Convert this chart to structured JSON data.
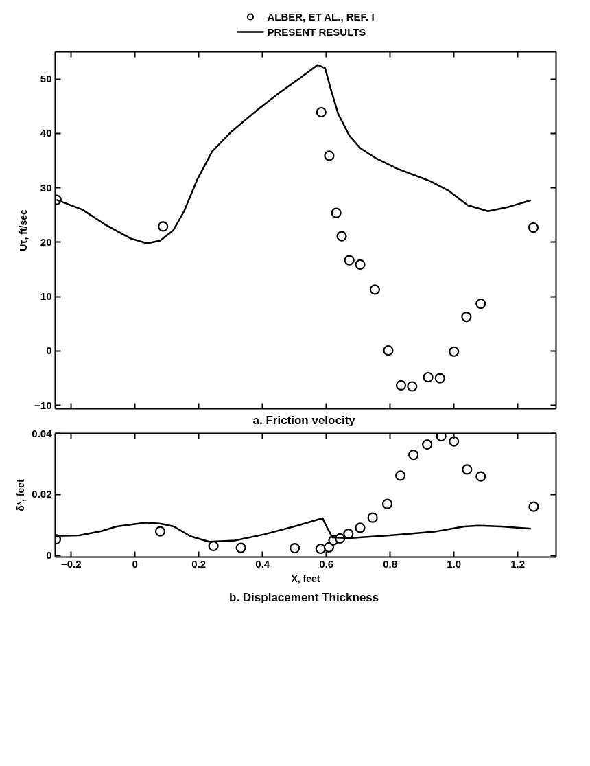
{
  "chart_data": [
    {
      "type": "scatter",
      "title": "a.  Friction velocity",
      "ylabel": "Uτ, ft/sec",
      "legend": "top",
      "tick_labels": "y",
      "grid": false,
      "xlim": [
        -0.25,
        1.32
      ],
      "ylim": [
        -10.6,
        55
      ],
      "xticks": [
        -0.2,
        0,
        0.2,
        0.4,
        0.6,
        0.8,
        1.0,
        1.2
      ],
      "yticks": [
        -10,
        0,
        10,
        20,
        30,
        40,
        50
      ],
      "series": [
        {
          "name": "ALBER, ET AL., REF. I",
          "marker": "circle",
          "color": "#000000",
          "x": [
            -0.246,
            0.088,
            0.584,
            0.609,
            0.631,
            0.648,
            0.672,
            0.706,
            0.752,
            0.794,
            0.834,
            0.869,
            0.919,
            0.956,
            1.0,
            1.039,
            1.084,
            1.249
          ],
          "values": [
            27.8,
            22.9,
            43.9,
            35.9,
            25.4,
            21.1,
            16.7,
            15.9,
            11.3,
            0.1,
            -6.3,
            -6.5,
            -4.8,
            -5.0,
            -0.1,
            6.3,
            8.7,
            22.7
          ]
        },
        {
          "name": "PRESENT RESULTS",
          "type": "line",
          "line_style": "solid",
          "color": "#000000",
          "x": [
            -0.246,
            -0.165,
            -0.095,
            -0.014,
            0.038,
            0.079,
            0.12,
            0.154,
            0.195,
            0.242,
            0.3,
            0.381,
            0.451,
            0.52,
            0.573,
            0.596,
            0.613,
            0.637,
            0.672,
            0.706,
            0.753,
            0.823,
            0.927,
            0.985,
            1.043,
            1.107,
            1.171,
            1.241
          ],
          "values": [
            27.8,
            26.0,
            23.3,
            20.7,
            19.8,
            20.3,
            22.2,
            25.7,
            31.5,
            36.7,
            40.2,
            44.2,
            47.4,
            50.3,
            52.6,
            52.0,
            48.3,
            43.6,
            39.6,
            37.3,
            35.5,
            33.5,
            31.2,
            29.4,
            26.8,
            25.7,
            26.5,
            27.7
          ]
        }
      ]
    },
    {
      "type": "scatter",
      "title": "b.  Displacement Thickness",
      "xlabel": "X, feet",
      "ylabel": "δ*, feet",
      "grid": false,
      "xlim": [
        -0.25,
        1.32
      ],
      "ylim": [
        -0.0005,
        0.04
      ],
      "xticks": [
        -0.2,
        0,
        0.2,
        0.4,
        0.6,
        0.8,
        {
          "value": 1.0,
          "label": "1.0"
        },
        1.2
      ],
      "yticks": [
        0,
        0.02,
        0.04
      ],
      "series": [
        {
          "marker": "circle",
          "color": "#000000",
          "x": [
            -0.248,
            0.079,
            0.246,
            0.332,
            0.501,
            0.582,
            0.608,
            0.622,
            0.643,
            0.669,
            0.706,
            0.745,
            0.791,
            0.832,
            0.873,
            0.916,
            0.96,
            1.0,
            1.041,
            1.084,
            1.25
          ],
          "values": [
            0.0053,
            0.0079,
            0.0031,
            0.0025,
            0.0024,
            0.0022,
            0.0027,
            0.005,
            0.0056,
            0.0071,
            0.0091,
            0.0124,
            0.0169,
            0.0262,
            0.033,
            0.0364,
            0.0391,
            0.0374,
            0.0282,
            0.0259,
            0.016
          ]
        },
        {
          "type": "line",
          "line_style": "solid",
          "color": "#000000",
          "x": [
            -0.248,
            -0.175,
            -0.105,
            -0.058,
            0.035,
            0.081,
            0.122,
            0.174,
            0.232,
            0.313,
            0.404,
            0.509,
            0.588,
            0.599,
            0.619,
            0.672,
            0.799,
            0.939,
            1.032,
            1.078,
            1.148,
            1.241
          ],
          "values": [
            0.0064,
            0.0066,
            0.008,
            0.0095,
            0.0108,
            0.0104,
            0.0095,
            0.0063,
            0.0045,
            0.0049,
            0.0069,
            0.0098,
            0.0122,
            0.0098,
            0.0059,
            0.0057,
            0.0066,
            0.0078,
            0.0095,
            0.0098,
            0.0095,
            0.0088
          ]
        }
      ]
    }
  ]
}
